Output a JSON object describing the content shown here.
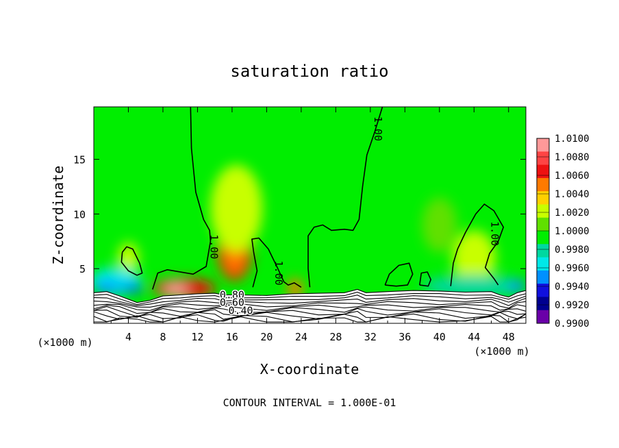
{
  "chart_data": {
    "type": "heatmap",
    "title": "saturation ratio",
    "xlabel": "X-coordinate",
    "ylabel": "Z-coordinate",
    "x_unit": "(×1000 m)",
    "y_unit": "(×1000 m)",
    "xlim": [
      0,
      50
    ],
    "ylim": [
      0,
      19.8
    ],
    "x_ticks": [
      4,
      8,
      12,
      16,
      20,
      24,
      28,
      32,
      36,
      40,
      44,
      48
    ],
    "y_ticks": [
      5,
      10,
      15
    ],
    "footer": "CONTOUR INTERVAL = 1.000E-01",
    "colorbar": {
      "labels": [
        "1.0100",
        "1.0080",
        "1.0060",
        "1.0040",
        "1.0020",
        "1.0000",
        "0.9980",
        "0.9960",
        "0.9940",
        "0.9920",
        "0.9900"
      ],
      "colors": [
        "#ff9999",
        "#ff4444",
        "#ee1111",
        "#ff7a00",
        "#ffd000",
        "#c8ff00",
        "#60e000",
        "#00ee00",
        "#00d8a0",
        "#00e8e8",
        "#0090ff",
        "#1010dd",
        "#000090",
        "#6a00a8"
      ]
    },
    "contour_labels": [
      {
        "text": "1.00",
        "x": 32.5,
        "z": 17.8
      },
      {
        "text": "1.00",
        "x": 13.5,
        "z": 7.0
      },
      {
        "text": "1.00",
        "x": 21.0,
        "z": 4.6
      },
      {
        "text": "1.00",
        "x": 46.0,
        "z": 8.2
      },
      {
        "text": "0.80",
        "x": 16.0,
        "z": 2.3
      },
      {
        "text": "0.60",
        "x": 16.0,
        "z": 1.6
      },
      {
        "text": "0.40",
        "x": 17.0,
        "z": 0.85
      }
    ],
    "blobs": [
      {
        "x": 16.3,
        "z": 6.5,
        "rx": 2.0,
        "rz": 2.6,
        "color": "#e81a00"
      },
      {
        "x": 16.3,
        "z": 6.2,
        "rx": 1.2,
        "rz": 1.6,
        "color": "#ff7a00"
      },
      {
        "x": 10.5,
        "z": 3.2,
        "rx": 3.6,
        "rz": 0.9,
        "color": "#ee1111"
      },
      {
        "x": 9.5,
        "z": 3.1,
        "rx": 1.4,
        "rz": 0.6,
        "color": "#ff9999"
      },
      {
        "x": 23.3,
        "z": 3.2,
        "rx": 0.9,
        "rz": 0.9,
        "color": "#ff7a00"
      },
      {
        "x": 16.5,
        "z": 10.5,
        "rx": 3.0,
        "rz": 4.0,
        "color": "#c8ff00"
      },
      {
        "x": 4.0,
        "z": 6.0,
        "rx": 1.2,
        "rz": 1.4,
        "color": "#c8ff00"
      },
      {
        "x": 44.0,
        "z": 6.0,
        "rx": 2.5,
        "rz": 2.5,
        "color": "#c8ff00"
      },
      {
        "x": 2.5,
        "z": 3.8,
        "rx": 3.0,
        "rz": 1.3,
        "color": "#00e8e8"
      },
      {
        "x": 1.5,
        "z": 3.3,
        "rx": 1.6,
        "rz": 0.5,
        "color": "#0090ff"
      },
      {
        "x": 4.5,
        "z": 3.2,
        "rx": 1.3,
        "rz": 0.4,
        "color": "#0050ee"
      },
      {
        "x": 44.0,
        "z": 3.4,
        "rx": 6.0,
        "rz": 1.0,
        "color": "#00d8a0"
      },
      {
        "x": 49.0,
        "z": 3.4,
        "rx": 1.0,
        "rz": 0.6,
        "color": "#0090ff"
      },
      {
        "x": 40.0,
        "z": 9.0,
        "rx": 2.0,
        "rz": 2.5,
        "color": "#60e000"
      }
    ],
    "contours": [
      [
        [
          11.2,
          19.8
        ],
        [
          11.3,
          16
        ],
        [
          11.8,
          12
        ],
        [
          12.7,
          9.5
        ],
        [
          13.4,
          8.5
        ],
        [
          13.5,
          7.5
        ],
        [
          13.0,
          5.2
        ],
        [
          11.5,
          4.5
        ],
        [
          8.5,
          4.9
        ],
        [
          7.4,
          4.6
        ],
        [
          6.8,
          3.1
        ]
      ],
      [
        [
          33.4,
          19.8
        ],
        [
          32.5,
          17.5
        ],
        [
          31.6,
          15.4
        ],
        [
          31.1,
          12.5
        ],
        [
          30.7,
          9.5
        ],
        [
          30.0,
          8.5
        ],
        [
          29.0,
          8.6
        ],
        [
          27.5,
          8.5
        ],
        [
          26.5,
          9.0
        ],
        [
          25.5,
          8.8
        ],
        [
          24.8,
          8.0
        ],
        [
          24.8,
          5.0
        ],
        [
          25.0,
          3.3
        ]
      ],
      [
        [
          18.4,
          3.3
        ],
        [
          18.9,
          4.8
        ],
        [
          18.5,
          6.5
        ],
        [
          18.3,
          7.7
        ],
        [
          19.1,
          7.8
        ],
        [
          20.2,
          6.8
        ],
        [
          21.3,
          5.0
        ],
        [
          22.0,
          3.8
        ],
        [
          22.5,
          3.5
        ],
        [
          23.2,
          3.7
        ],
        [
          24.0,
          3.3
        ]
      ],
      [
        [
          3.3,
          6.5
        ],
        [
          3.8,
          7.0
        ],
        [
          4.5,
          6.8
        ],
        [
          5.3,
          5.5
        ],
        [
          5.6,
          4.6
        ],
        [
          5.0,
          4.4
        ],
        [
          4.0,
          4.8
        ],
        [
          3.2,
          5.6
        ],
        [
          3.3,
          6.5
        ]
      ],
      [
        [
          33.7,
          3.5
        ],
        [
          34.2,
          4.5
        ],
        [
          35.3,
          5.3
        ],
        [
          36.5,
          5.5
        ],
        [
          36.9,
          4.5
        ],
        [
          36.3,
          3.5
        ],
        [
          35.0,
          3.4
        ],
        [
          33.7,
          3.5
        ]
      ],
      [
        [
          37.7,
          3.5
        ],
        [
          37.9,
          4.6
        ],
        [
          38.6,
          4.7
        ],
        [
          39.0,
          4.0
        ],
        [
          38.7,
          3.4
        ],
        [
          37.7,
          3.5
        ]
      ],
      [
        [
          41.3,
          3.4
        ],
        [
          41.6,
          5.5
        ],
        [
          42.1,
          6.8
        ],
        [
          43.0,
          8.3
        ],
        [
          44.2,
          10.0
        ],
        [
          45.2,
          10.9
        ],
        [
          46.3,
          10.3
        ],
        [
          47.4,
          8.8
        ],
        [
          46.8,
          7.5
        ],
        [
          45.8,
          6.4
        ],
        [
          45.3,
          5.1
        ],
        [
          46.3,
          4.1
        ],
        [
          46.8,
          3.5
        ]
      ]
    ],
    "terrain": [
      [
        0,
        2.8
      ],
      [
        1.5,
        2.9
      ],
      [
        3,
        2.5
      ],
      [
        5,
        1.9
      ],
      [
        6.5,
        2.1
      ],
      [
        8,
        2.5
      ],
      [
        10,
        2.6
      ],
      [
        12,
        2.7
      ],
      [
        14,
        2.75
      ],
      [
        15,
        2.6
      ],
      [
        17,
        2.6
      ],
      [
        20,
        2.55
      ],
      [
        23,
        2.7
      ],
      [
        26,
        2.75
      ],
      [
        29,
        2.8
      ],
      [
        30.5,
        3.1
      ],
      [
        31.5,
        2.8
      ],
      [
        34,
        2.9
      ],
      [
        37,
        3.0
      ],
      [
        40,
        2.95
      ],
      [
        43,
        2.85
      ],
      [
        46,
        2.9
      ],
      [
        47,
        2.6
      ],
      [
        48,
        2.4
      ],
      [
        49,
        2.8
      ],
      [
        50,
        3.0
      ]
    ]
  }
}
